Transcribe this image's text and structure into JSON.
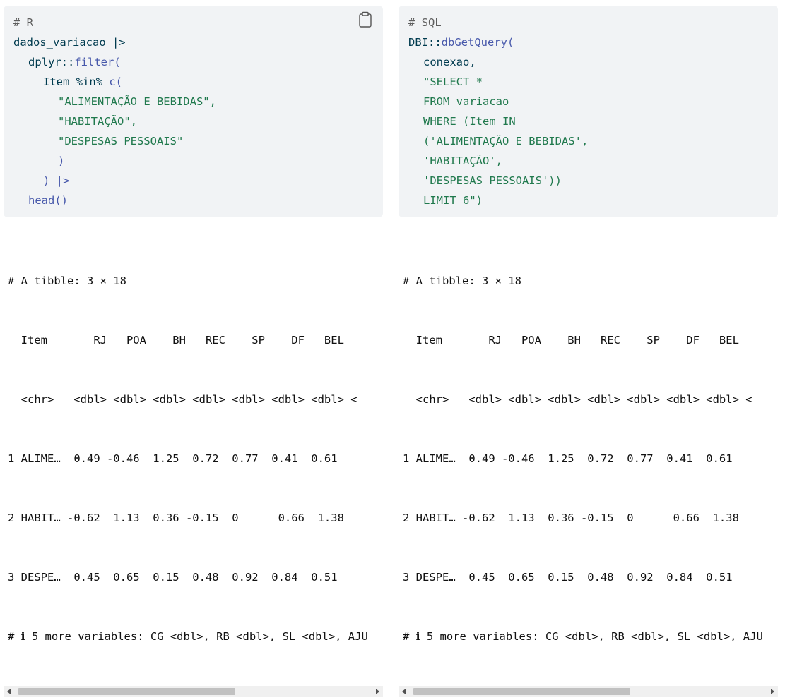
{
  "left": {
    "code": {
      "comment": "# R",
      "line1": "dados_variacao |>",
      "line2_ns": "dplyr::",
      "line2_fn": "filter",
      "line2_paren": "(",
      "line3_a": "Item %in% ",
      "line3_fn": "c",
      "line3_paren": "(",
      "line4": "\"ALIMENTAÇÃO E BEBIDAS\",",
      "line5": "\"HABITAÇÃO\",",
      "line6": "\"DESPESAS PESSOAIS\"",
      "line7": ")",
      "line8": ") |>",
      "line9_fn": "head",
      "line9_paren": "()"
    },
    "output": {
      "lines": [
        "# A tibble: 3 × 18",
        "  Item       RJ   POA    BH   REC    SP    DF   BEL   ",
        "  <chr>   <dbl> <dbl> <dbl> <dbl> <dbl> <dbl> <dbl> <",
        "1 ALIME…  0.49 -0.46  1.25  0.72  0.77  0.41  0.61   ",
        "2 HABIT… -0.62  1.13  0.36 -0.15  0      0.66  1.38  ",
        "3 DESPE…  0.45  0.65  0.15  0.48  0.92  0.84  0.51   ",
        "# ℹ 5 more variables: CG <dbl>, RB <dbl>, SL <dbl>, AJU"
      ]
    },
    "scroll_fraction": 0.62
  },
  "right": {
    "code": {
      "comment": "# SQL",
      "line1_ns": "DBI::",
      "line1_fn": "dbGetQuery",
      "line1_paren": "(",
      "line2": "conexao,",
      "line3": "\"SELECT *",
      "line4": "FROM variacao",
      "line5": "WHERE (Item IN",
      "line6": "('ALIMENTAÇÃO E BEBIDAS',",
      "line7": "'HABITAÇÃO',",
      "line8": "'DESPESAS PESSOAIS'))",
      "line9": "LIMIT 6\")"
    },
    "output": {
      "lines": [
        "# A tibble: 3 × 18",
        "  Item       RJ   POA    BH   REC    SP    DF   BEL   ",
        "  <chr>   <dbl> <dbl> <dbl> <dbl> <dbl> <dbl> <dbl> <",
        "1 ALIME…  0.49 -0.46  1.25  0.72  0.77  0.41  0.61   ",
        "2 HABIT… -0.62  1.13  0.36 -0.15  0      0.66  1.38  ",
        "3 DESPE…  0.45  0.65  0.15  0.48  0.92  0.84  0.51   ",
        "# ℹ 5 more variables: CG <dbl>, RB <dbl>, SL <dbl>, AJU"
      ]
    },
    "scroll_fraction": 0.62
  },
  "icons": {
    "copy": "clipboard-icon",
    "scroll_left": "arrow-left-icon",
    "scroll_right": "arrow-right-icon"
  },
  "colors": {
    "code_bg": "#f1f3f5",
    "function": "#4758ab",
    "string": "#20794d",
    "comment": "#5e5e5e"
  }
}
